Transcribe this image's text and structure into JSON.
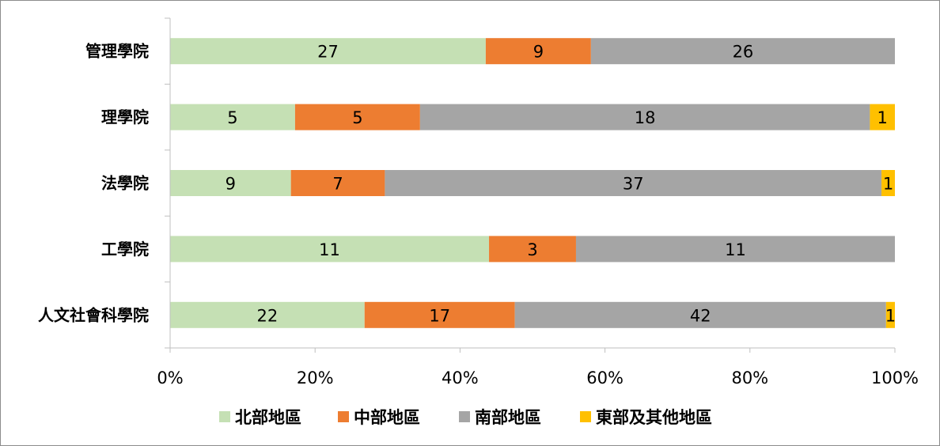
{
  "chart_data": {
    "type": "bar",
    "orientation": "horizontal",
    "stacked": "percent",
    "categories": [
      "管理學院",
      "理學院",
      "法學院",
      "工學院",
      "人文社會科學院"
    ],
    "series": [
      {
        "name": "北部地區",
        "color": "#c5e0b4",
        "values": [
          27,
          5,
          9,
          11,
          22
        ]
      },
      {
        "name": "中部地區",
        "color": "#ed7d31",
        "values": [
          9,
          5,
          7,
          3,
          17
        ]
      },
      {
        "name": "南部地區",
        "color": "#a5a5a5",
        "values": [
          26,
          18,
          37,
          11,
          42
        ]
      },
      {
        "name": "東部及其他地區",
        "color": "#ffc000",
        "values": [
          0,
          1,
          1,
          0,
          1
        ]
      }
    ],
    "x_ticks": [
      "0%",
      "20%",
      "40%",
      "60%",
      "80%",
      "100%"
    ],
    "xlim": [
      0,
      100
    ],
    "legend_position": "bottom",
    "grid": false
  }
}
